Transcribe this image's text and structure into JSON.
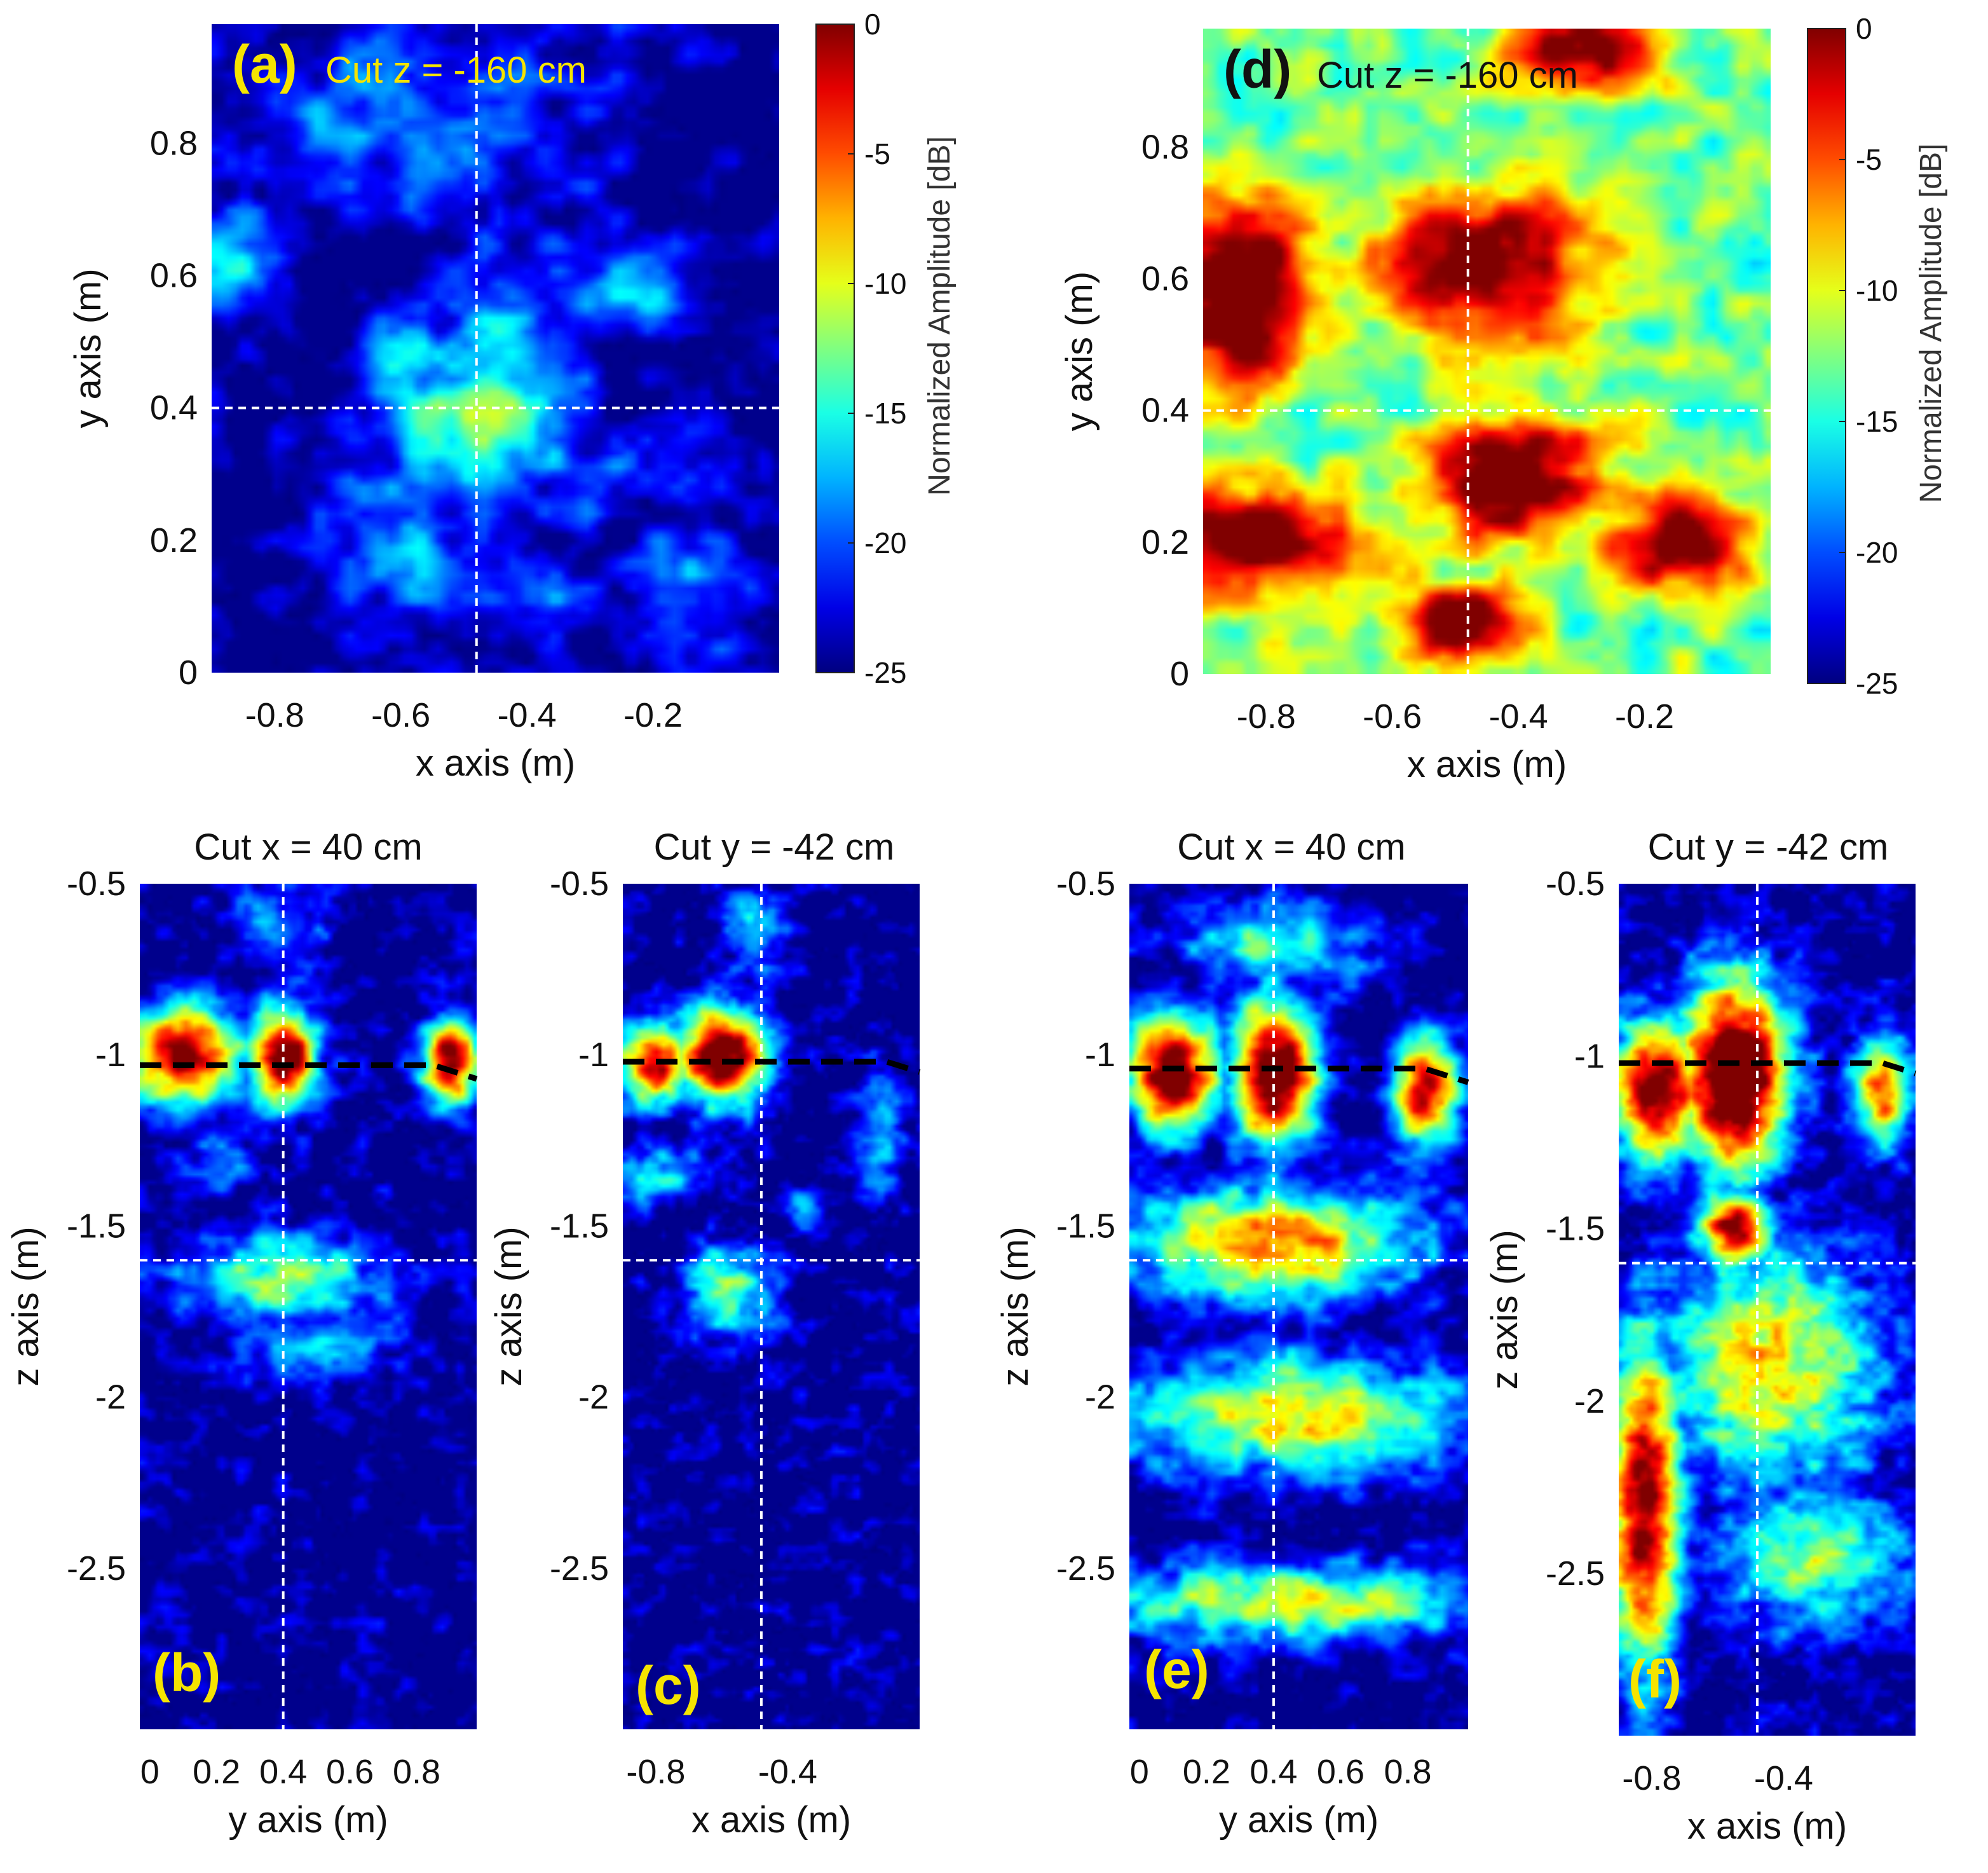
{
  "chart_data": [
    {
      "panel": "(a)",
      "type": "heatmap",
      "title": "Cut z = -160 cm",
      "label_color": "#f5e400",
      "xlabel": "x axis (m)",
      "ylabel": "y axis (m)",
      "xlim": [
        -0.9,
        0.0
      ],
      "ylim": [
        0.0,
        0.98
      ],
      "xticks": [
        -0.8,
        -0.6,
        -0.4,
        -0.2
      ],
      "xtick_labels": [
        "-0.8",
        "-0.6",
        "-0.4",
        "-0.2"
      ],
      "yticks": [
        0,
        0.2,
        0.4,
        0.6,
        0.8
      ],
      "ytick_labels": [
        "0",
        "0.2",
        "0.4",
        "0.6",
        "0.8"
      ],
      "crosshair": {
        "x": -0.48,
        "y": 0.4
      },
      "colorbar": {
        "label": "Normalized Amplitude [dB]",
        "range": [
          -25,
          0
        ],
        "ticks": [
          0,
          -5,
          -10,
          -15,
          -20,
          -25
        ],
        "tick_labels": [
          "0",
          "-5",
          "-10",
          "-15",
          "-20",
          "-25"
        ]
      },
      "field": {
        "background_db": -25,
        "blobs": [
          {
            "x": -0.48,
            "y": 0.38,
            "sx": 0.11,
            "sy": 0.09,
            "db": -12
          },
          {
            "x": -0.45,
            "y": 0.5,
            "sx": 0.07,
            "sy": 0.12,
            "db": -17
          },
          {
            "x": -0.6,
            "y": 0.45,
            "sx": 0.06,
            "sy": 0.06,
            "db": -16
          },
          {
            "x": -0.6,
            "y": 0.85,
            "sx": 0.22,
            "sy": 0.1,
            "db": -19
          },
          {
            "x": -0.88,
            "y": 0.62,
            "sx": 0.05,
            "sy": 0.06,
            "db": -15
          },
          {
            "x": -0.25,
            "y": 0.58,
            "sx": 0.09,
            "sy": 0.05,
            "db": -18
          },
          {
            "x": -0.58,
            "y": 0.2,
            "sx": 0.1,
            "sy": 0.1,
            "db": -18
          },
          {
            "x": -0.3,
            "y": 0.3,
            "sx": 0.1,
            "sy": 0.05,
            "db": -19
          },
          {
            "x": -0.15,
            "y": 0.12,
            "sx": 0.07,
            "sy": 0.07,
            "db": -19
          },
          {
            "x": -0.4,
            "y": 0.1,
            "sx": 0.08,
            "sy": 0.05,
            "db": -20
          }
        ]
      }
    },
    {
      "panel": "(d)",
      "type": "heatmap",
      "title": "Cut z = -160 cm",
      "label_color": "#111111",
      "xlabel": "x axis (m)",
      "ylabel": "y axis (m)",
      "xlim": [
        -0.9,
        0.0
      ],
      "ylim": [
        0.0,
        0.98
      ],
      "xticks": [
        -0.8,
        -0.6,
        -0.4,
        -0.2
      ],
      "xtick_labels": [
        "-0.8",
        "-0.6",
        "-0.4",
        "-0.2"
      ],
      "yticks": [
        0,
        0.2,
        0.4,
        0.6,
        0.8
      ],
      "ytick_labels": [
        "0",
        "0.2",
        "0.4",
        "0.6",
        "0.8"
      ],
      "crosshair": {
        "x": -0.48,
        "y": 0.4
      },
      "colorbar": {
        "label": "Normalized Amplitude [dB]",
        "range": [
          -25,
          0
        ],
        "ticks": [
          0,
          -5,
          -10,
          -15,
          -20,
          -25
        ],
        "tick_labels": [
          "0",
          "-5",
          "-10",
          "-15",
          "-20",
          "-25"
        ]
      },
      "field": {
        "background_db": -13,
        "blobs": [
          {
            "x": -0.85,
            "y": 0.58,
            "sx": 0.09,
            "sy": 0.1,
            "db": 5
          },
          {
            "x": -0.82,
            "y": 0.2,
            "sx": 0.12,
            "sy": 0.06,
            "db": 3
          },
          {
            "x": -0.4,
            "y": 0.3,
            "sx": 0.1,
            "sy": 0.07,
            "db": 3
          },
          {
            "x": -0.45,
            "y": 0.62,
            "sx": 0.12,
            "sy": 0.08,
            "db": 2
          },
          {
            "x": -0.15,
            "y": 0.2,
            "sx": 0.08,
            "sy": 0.05,
            "db": 2
          },
          {
            "x": -0.5,
            "y": 0.08,
            "sx": 0.07,
            "sy": 0.04,
            "db": 3
          },
          {
            "x": -0.3,
            "y": 0.95,
            "sx": 0.08,
            "sy": 0.04,
            "db": 2
          },
          {
            "x": -0.7,
            "y": 0.28,
            "sx": 0.05,
            "sy": 0.05,
            "db": -12
          },
          {
            "x": -0.6,
            "y": 0.72,
            "sx": 0.08,
            "sy": 0.04,
            "db": -12
          },
          {
            "x": -0.32,
            "y": 0.75,
            "sx": 0.08,
            "sy": 0.04,
            "db": -10
          },
          {
            "x": -0.05,
            "y": 0.8,
            "sx": 0.04,
            "sy": 0.08,
            "db": -13
          }
        ]
      }
    },
    {
      "panel": "(b)",
      "type": "heatmap",
      "title": "Cut x = 40 cm",
      "label_color": "#f5e400",
      "xlabel": "y axis (m)",
      "ylabel": "z axis (m)",
      "xlim": [
        -0.03,
        0.98
      ],
      "ylim": [
        -2.97,
        -0.5
      ],
      "xticks": [
        0,
        0.2,
        0.4,
        0.6,
        0.8
      ],
      "xtick_labels": [
        "0",
        "0.2",
        "0.4",
        "0.6",
        "0.8"
      ],
      "yticks": [
        -0.5,
        -1,
        -1.5,
        -2,
        -2.5
      ],
      "ytick_labels": [
        "-0.5",
        "-1",
        "-1.5",
        "-2",
        "-2.5"
      ],
      "crosshair": {
        "x": 0.4,
        "y": -1.6
      },
      "interface": [
        [
          -0.03,
          -1.03
        ],
        [
          0.65,
          -1.03
        ],
        [
          0.85,
          -1.03
        ],
        [
          0.98,
          -1.07
        ]
      ],
      "field": {
        "background_db": -25,
        "blobs": [
          {
            "x": 0.4,
            "y": -1.0,
            "sx": 0.07,
            "sy": 0.1,
            "db": 3
          },
          {
            "x": 0.1,
            "y": -1.0,
            "sx": 0.12,
            "sy": 0.1,
            "db": 1
          },
          {
            "x": 0.9,
            "y": -1.02,
            "sx": 0.06,
            "sy": 0.09,
            "db": 0
          },
          {
            "x": 0.4,
            "y": -1.65,
            "sx": 0.22,
            "sy": 0.1,
            "db": -13
          },
          {
            "x": 0.5,
            "y": -1.85,
            "sx": 0.18,
            "sy": 0.08,
            "db": -18
          },
          {
            "x": 0.4,
            "y": -0.62,
            "sx": 0.1,
            "sy": 0.08,
            "db": -18
          },
          {
            "x": 0.22,
            "y": -1.3,
            "sx": 0.06,
            "sy": 0.07,
            "db": -18
          }
        ]
      }
    },
    {
      "panel": "(c)",
      "type": "heatmap",
      "title": "Cut y = -42 cm",
      "label_color": "#f5e400",
      "xlabel": "x axis (m)",
      "ylabel": "z axis (m)",
      "xlim": [
        -0.9,
        0.0
      ],
      "ylim": [
        -2.97,
        -0.5
      ],
      "xticks": [
        -0.8,
        -0.4
      ],
      "xtick_labels": [
        "-0.8",
        "-0.4"
      ],
      "yticks": [
        -0.5,
        -1,
        -1.5,
        -2,
        -2.5
      ],
      "ytick_labels": [
        "-0.5",
        "-1",
        "-1.5",
        "-2",
        "-2.5"
      ],
      "crosshair": {
        "x": -0.48,
        "y": -1.6
      },
      "interface": [
        [
          -0.9,
          -1.02
        ],
        [
          -0.1,
          -1.02
        ],
        [
          0.0,
          -1.05
        ]
      ],
      "field": {
        "background_db": -25,
        "blobs": [
          {
            "x": -0.6,
            "y": -1.0,
            "sx": 0.1,
            "sy": 0.1,
            "db": 3
          },
          {
            "x": -0.8,
            "y": -1.02,
            "sx": 0.08,
            "sy": 0.09,
            "db": -2
          },
          {
            "x": -0.58,
            "y": -1.68,
            "sx": 0.1,
            "sy": 0.1,
            "db": -13
          },
          {
            "x": -0.5,
            "y": -0.62,
            "sx": 0.07,
            "sy": 0.1,
            "db": -17
          },
          {
            "x": -0.12,
            "y": -1.25,
            "sx": 0.05,
            "sy": 0.15,
            "db": -17
          },
          {
            "x": -0.78,
            "y": -1.35,
            "sx": 0.1,
            "sy": 0.06,
            "db": -16
          },
          {
            "x": -0.35,
            "y": -1.45,
            "sx": 0.05,
            "sy": 0.05,
            "db": -18
          }
        ]
      }
    },
    {
      "panel": "(e)",
      "type": "heatmap",
      "title": "Cut x = 40 cm",
      "label_color": "#f5e400",
      "xlabel": "y axis (m)",
      "ylabel": "z axis (m)",
      "xlim": [
        -0.03,
        0.98
      ],
      "ylim": [
        -2.97,
        -0.5
      ],
      "xticks": [
        0,
        0.2,
        0.4,
        0.6,
        0.8
      ],
      "xtick_labels": [
        "0",
        "0.2",
        "0.4",
        "0.6",
        "0.8"
      ],
      "yticks": [
        -0.5,
        -1,
        -1.5,
        -2,
        -2.5
      ],
      "ytick_labels": [
        "-0.5",
        "-1",
        "-1.5",
        "-2",
        "-2.5"
      ],
      "crosshair": {
        "x": 0.4,
        "y": -1.6
      },
      "interface": [
        [
          -0.03,
          -1.04
        ],
        [
          0.85,
          -1.04
        ],
        [
          0.98,
          -1.08
        ]
      ],
      "field": {
        "background_db": -25,
        "blobs": [
          {
            "x": 0.4,
            "y": -1.05,
            "sx": 0.09,
            "sy": 0.15,
            "db": 5
          },
          {
            "x": 0.1,
            "y": -1.05,
            "sx": 0.1,
            "sy": 0.12,
            "db": 2
          },
          {
            "x": 0.85,
            "y": -1.1,
            "sx": 0.07,
            "sy": 0.12,
            "db": -1
          },
          {
            "x": 0.4,
            "y": -1.55,
            "sx": 0.3,
            "sy": 0.12,
            "db": -6
          },
          {
            "x": 0.45,
            "y": -2.05,
            "sx": 0.35,
            "sy": 0.12,
            "db": -8
          },
          {
            "x": 0.45,
            "y": -2.6,
            "sx": 0.4,
            "sy": 0.08,
            "db": -10
          },
          {
            "x": 0.4,
            "y": -0.68,
            "sx": 0.2,
            "sy": 0.1,
            "db": -14
          }
        ]
      }
    },
    {
      "panel": "(f)",
      "type": "heatmap",
      "title": "Cut y = -42 cm",
      "label_color": "#f5e400",
      "xlabel": "x axis (m)",
      "ylabel": "z axis (m)",
      "xlim": [
        -0.9,
        0.0
      ],
      "ylim": [
        -2.97,
        -0.5
      ],
      "xticks": [
        -0.8,
        -0.4
      ],
      "xtick_labels": [
        "-0.8",
        "-0.4"
      ],
      "yticks": [
        -0.5,
        -1,
        -1.5,
        -2,
        -2.5
      ],
      "ytick_labels": [
        "-0.5",
        "-1",
        "-1.5",
        "-2",
        "-2.5"
      ],
      "crosshair": {
        "x": -0.48,
        "y": -1.6
      },
      "interface": [
        [
          -0.9,
          -1.02
        ],
        [
          -0.1,
          -1.02
        ],
        [
          0.0,
          -1.05
        ]
      ],
      "field": {
        "background_db": -25,
        "blobs": [
          {
            "x": -0.55,
            "y": -1.05,
            "sx": 0.12,
            "sy": 0.2,
            "db": 6
          },
          {
            "x": -0.78,
            "y": -1.1,
            "sx": 0.1,
            "sy": 0.15,
            "db": 1
          },
          {
            "x": -0.55,
            "y": -1.5,
            "sx": 0.08,
            "sy": 0.08,
            "db": 0
          },
          {
            "x": -0.82,
            "y": -2.3,
            "sx": 0.08,
            "sy": 0.35,
            "db": 1
          },
          {
            "x": -0.45,
            "y": -1.9,
            "sx": 0.25,
            "sy": 0.25,
            "db": -9
          },
          {
            "x": -0.1,
            "y": -1.1,
            "sx": 0.07,
            "sy": 0.12,
            "db": -6
          },
          {
            "x": -0.3,
            "y": -2.45,
            "sx": 0.2,
            "sy": 0.15,
            "db": -12
          }
        ]
      }
    }
  ]
}
